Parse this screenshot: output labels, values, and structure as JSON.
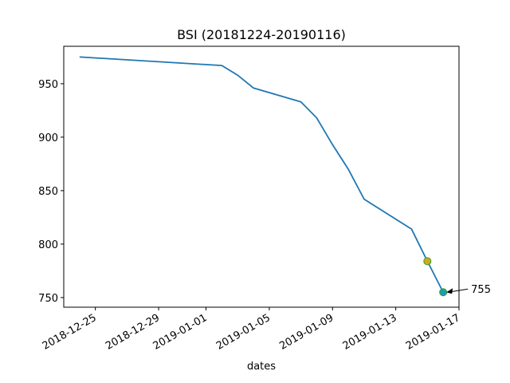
{
  "chart_data": {
    "type": "line",
    "title": "BSI (20181224-20190116)",
    "xlabel": "dates",
    "x": [
      "2018-12-24",
      "2019-01-02",
      "2019-01-03",
      "2019-01-04",
      "2019-01-07",
      "2019-01-08",
      "2019-01-09",
      "2019-01-10",
      "2019-01-11",
      "2019-01-14",
      "2019-01-15",
      "2019-01-16"
    ],
    "series": [
      {
        "color": "#1f77b4",
        "values": [
          975,
          967,
          958,
          946,
          933,
          918,
          893,
          870,
          842,
          814,
          784,
          755
        ]
      }
    ],
    "markers": [
      {
        "x": "2019-01-15",
        "y": 784,
        "color": "#d9a520",
        "edge": "#2ca02c"
      },
      {
        "x": "2019-01-16",
        "y": 755,
        "color": "#1f9bb4",
        "edge": "#2ca02c"
      }
    ],
    "annotation": {
      "x": "2019-01-16",
      "value": 755
    },
    "xlim": [
      "2018-12-23",
      "2019-01-17"
    ],
    "ylim": [
      741,
      985
    ],
    "xticks": [
      "2018-12-25",
      "2018-12-29",
      "2019-01-01",
      "2019-01-05",
      "2019-01-09",
      "2019-01-13",
      "2019-01-17"
    ],
    "yticks": [
      750,
      800,
      850,
      900,
      950
    ]
  }
}
